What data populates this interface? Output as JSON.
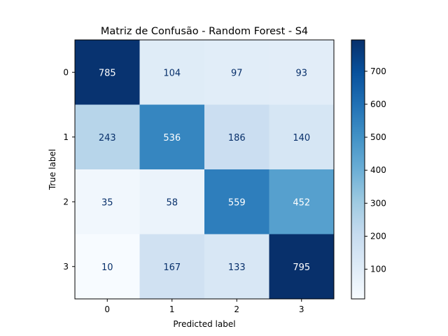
{
  "chart_data": {
    "type": "heatmap",
    "title": "Matriz de Confusão - Random Forest - S4",
    "xlabel": "Predicted label",
    "ylabel": "True label",
    "x_ticks": [
      "0",
      "1",
      "2",
      "3"
    ],
    "y_ticks": [
      "0",
      "1",
      "2",
      "3"
    ],
    "matrix": [
      [
        785,
        104,
        97,
        93
      ],
      [
        243,
        536,
        186,
        140
      ],
      [
        35,
        58,
        559,
        452
      ],
      [
        10,
        167,
        133,
        795
      ]
    ],
    "colormap": "Blues",
    "colorbar": {
      "range": [
        10,
        795
      ],
      "ticks": [
        "100",
        "200",
        "300",
        "400",
        "500",
        "600",
        "700"
      ]
    }
  }
}
